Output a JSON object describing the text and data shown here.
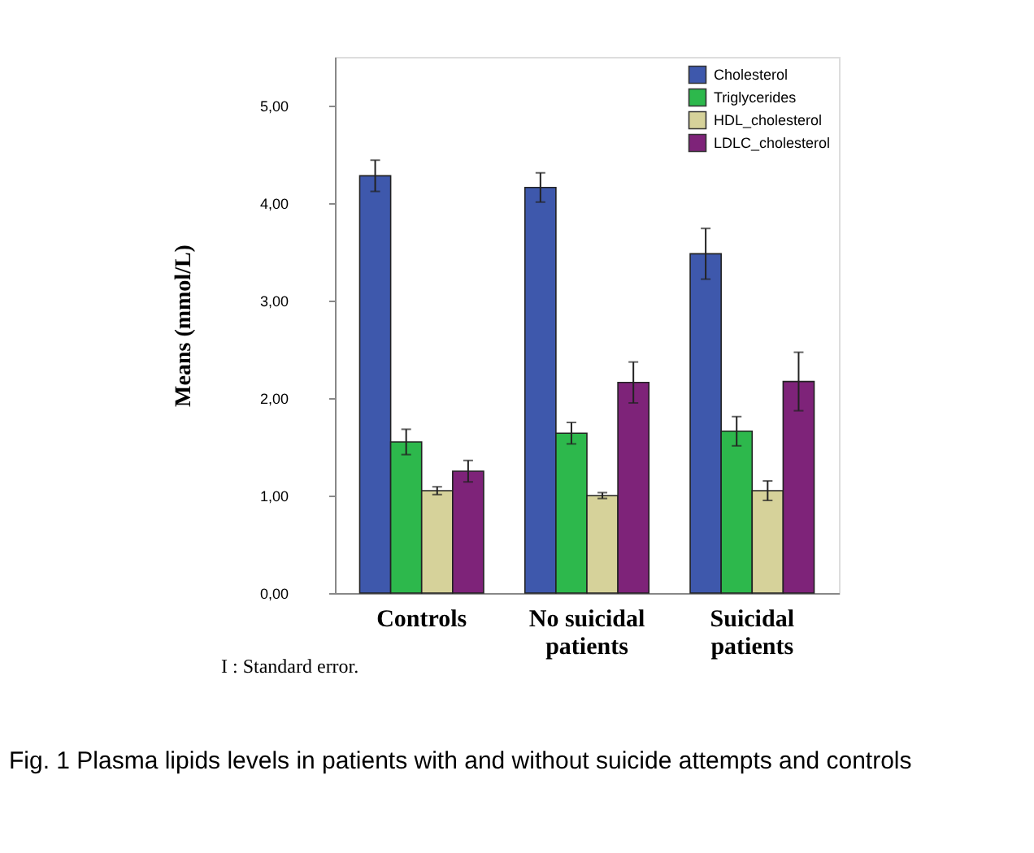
{
  "chart_data": {
    "type": "bar",
    "title": "Fig. 1  Plasma lipids levels in patients with and without suicide attempts and controls",
    "ylabel": "Means (mmol/L)",
    "categories": [
      "Controls",
      "No suicidal patients",
      "Suicidal patients"
    ],
    "series": [
      {
        "name": "Cholesterol",
        "color": "#3e58ac",
        "values": [
          4.28,
          4.16,
          3.48
        ],
        "errors": [
          0.16,
          0.15,
          0.26
        ]
      },
      {
        "name": "Triglycerides",
        "color": "#2db84c",
        "values": [
          1.55,
          1.64,
          1.66
        ],
        "errors": [
          0.13,
          0.11,
          0.15
        ]
      },
      {
        "name": "HDL_cholesterol",
        "color": "#d6d29a",
        "values": [
          1.05,
          1.0,
          1.05
        ],
        "errors": [
          0.04,
          0.03,
          0.1
        ]
      },
      {
        "name": "LDLC_cholesterol",
        "color": "#7e2379",
        "values": [
          1.25,
          2.16,
          2.17
        ],
        "errors": [
          0.11,
          0.21,
          0.3
        ]
      }
    ],
    "ylim": [
      0,
      5.5
    ],
    "yticks": [
      {
        "value": 0,
        "label": "0,00"
      },
      {
        "value": 1,
        "label": "1,00"
      },
      {
        "value": 2,
        "label": "2,00"
      },
      {
        "value": 3,
        "label": "3,00"
      },
      {
        "value": 4,
        "label": "4,00"
      },
      {
        "value": 5,
        "label": "5,00"
      }
    ],
    "grid": false,
    "legend": "top right",
    "annotations": [
      "I : Standard error."
    ]
  }
}
